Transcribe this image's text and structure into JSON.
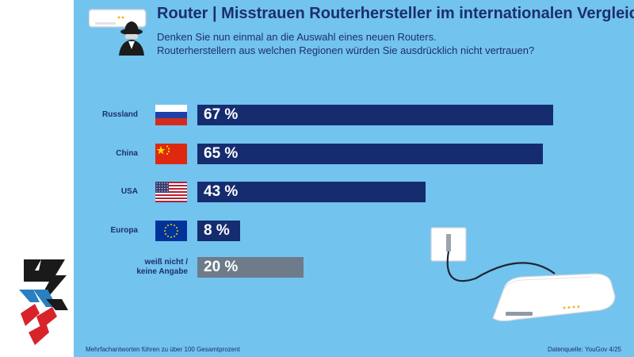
{
  "title": "Router | Misstrauen Routerhersteller im internationalen Vergleich",
  "subtitle_line1": "Denken Sie nun einmal an die Auswahl eines neuen Routers.",
  "subtitle_line2": "Routerherstellern aus welchen Regionen würden Sie ausdrücklich nicht vertrauen?",
  "footnote": "Mehrfachantworten führen zu über 100 Gesamtprozent",
  "source": "Datenquelle: YouGov 4/25",
  "icons": {
    "logo": "lightning-bolt-logo",
    "header": "router-spy-icon",
    "illustration": "router-with-cable-illustration"
  },
  "colors": {
    "background": "#72c3ee",
    "bar": "#152c6f",
    "bar_no_answer": "#6e7b8a",
    "text": "#1c2f6b"
  },
  "chart_data": {
    "type": "bar",
    "orientation": "horizontal",
    "categories": [
      "Russland",
      "China",
      "USA",
      "Europa",
      "weiß nicht /\nkeine Angabe"
    ],
    "values": [
      67,
      65,
      43,
      8,
      20
    ],
    "value_labels": [
      "67 %",
      "65 %",
      "43 %",
      "8 %",
      "20 %"
    ],
    "flags": [
      "russia-flag",
      "china-flag",
      "usa-flag",
      "eu-flag",
      ""
    ],
    "xlim": [
      0,
      100
    ],
    "grid": false,
    "legend": "none"
  }
}
